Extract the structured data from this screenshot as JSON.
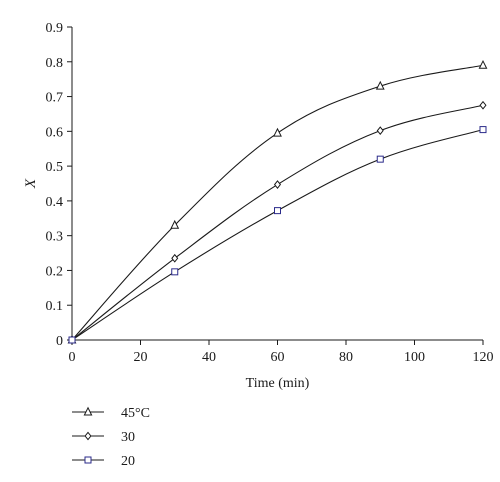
{
  "chart_data": {
    "type": "line",
    "title": "",
    "xlabel": "Time (min)",
    "ylabel": "X",
    "xlim": [
      0,
      120
    ],
    "ylim": [
      0,
      0.9
    ],
    "xticks": [
      "0",
      "20",
      "40",
      "60",
      "80",
      "100",
      "120"
    ],
    "yticks": [
      "0",
      "0.1",
      "0.2",
      "0.3",
      "0.4",
      "0.5",
      "0.6",
      "0.7",
      "0.8",
      "0.9"
    ],
    "grid": false,
    "legend_position": "below-left",
    "series": [
      {
        "name": "45°C",
        "marker": "triangle",
        "color": "#1a1a1a",
        "x": [
          0,
          30,
          60,
          90,
          120
        ],
        "y": [
          0,
          0.33,
          0.595,
          0.73,
          0.79
        ]
      },
      {
        "name": "30",
        "marker": "diamond",
        "color": "#1a1a1a",
        "x": [
          0,
          30,
          60,
          90,
          120
        ],
        "y": [
          0,
          0.235,
          0.447,
          0.602,
          0.675
        ]
      },
      {
        "name": "20",
        "marker": "square",
        "color": "#2a2a8a",
        "x": [
          0,
          30,
          60,
          90,
          120
        ],
        "y": [
          0,
          0.196,
          0.372,
          0.52,
          0.605
        ]
      }
    ]
  }
}
